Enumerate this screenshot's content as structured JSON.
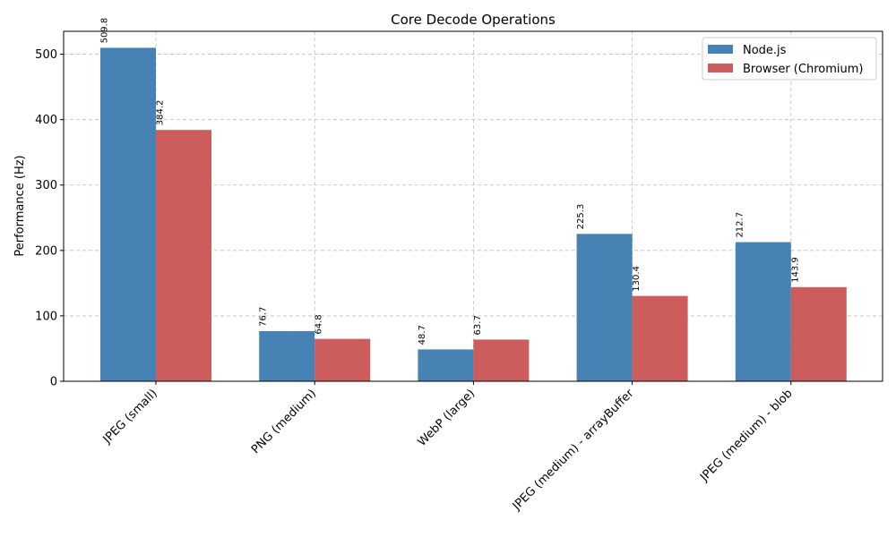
{
  "chart_data": {
    "type": "bar",
    "title": "Core Decode Operations",
    "xlabel": "",
    "ylabel": "Performance (Hz)",
    "categories": [
      "JPEG (small)",
      "PNG (medium)",
      "WebP (large)",
      "JPEG (medium) - arrayBuffer",
      "JPEG (medium) - blob"
    ],
    "series": [
      {
        "name": "Node.js",
        "color": "#4682b4",
        "values": [
          509.8,
          76.7,
          48.7,
          225.3,
          212.7
        ]
      },
      {
        "name": "Browser (Chromium)",
        "color": "#cd5c5c",
        "values": [
          384.2,
          64.8,
          63.7,
          130.4,
          143.9
        ]
      }
    ],
    "ylim": [
      0,
      535
    ],
    "yticks": [
      0,
      100,
      200,
      300,
      400,
      500
    ],
    "grid": true,
    "legend_position": "top-right"
  }
}
